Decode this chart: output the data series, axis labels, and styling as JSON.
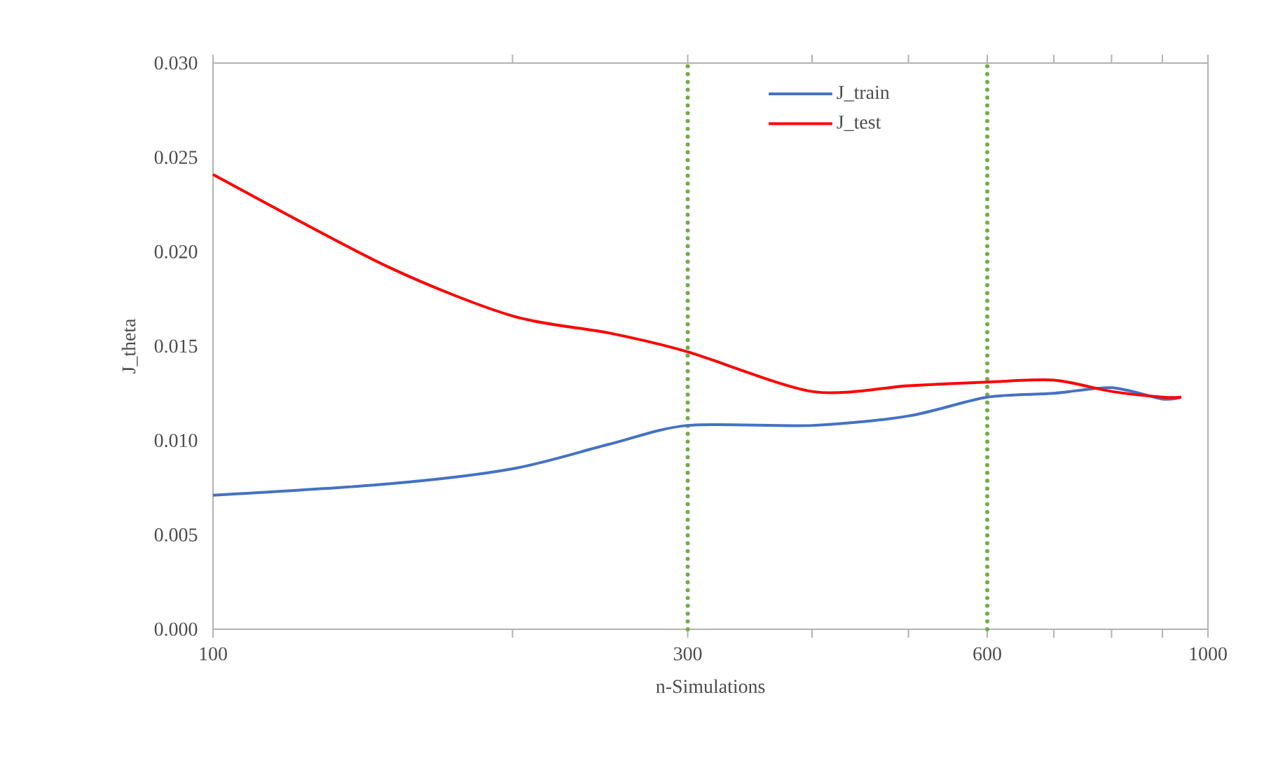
{
  "chart_data": {
    "type": "line",
    "xlabel": "n-Simulations",
    "ylabel": "J_theta",
    "log": "x",
    "xlim": [
      100,
      1000
    ],
    "xticks": [
      100,
      {
        "value": 200,
        "label": null
      },
      300,
      {
        "value": 400,
        "label": null
      },
      {
        "value": 500,
        "label": null
      },
      600,
      {
        "value": 700,
        "label": null
      },
      {
        "value": 800,
        "label": null
      },
      {
        "value": 900,
        "label": null
      },
      1000
    ],
    "ylim": [
      0,
      0.03
    ],
    "yticks": [
      {
        "value": 0,
        "label": "0.000"
      },
      {
        "value": 0.005,
        "label": "0.005"
      },
      {
        "value": 0.01,
        "label": "0.010"
      },
      {
        "value": 0.015,
        "label": "0.015"
      },
      {
        "value": 0.02,
        "label": "0.020"
      },
      {
        "value": 0.025,
        "label": "0.025"
      },
      {
        "value": 0.03,
        "label": "0.030"
      }
    ],
    "x": [
      100,
      150,
      200,
      250,
      300,
      400,
      500,
      600,
      700,
      800,
      900,
      940
    ],
    "series": [
      {
        "name": "J_train",
        "color": "#4472c4",
        "values": [
          0.0071,
          0.0077,
          0.0085,
          0.0098,
          0.0108,
          0.0108,
          0.0113,
          0.0123,
          0.0125,
          0.0128,
          0.0122,
          0.0123
        ]
      },
      {
        "name": "J_test",
        "color": "#ff0000",
        "values": [
          0.0241,
          0.0192,
          0.0166,
          0.0157,
          0.0147,
          0.0126,
          0.0129,
          0.0131,
          0.0132,
          0.0126,
          0.0123,
          0.0123
        ]
      }
    ],
    "ref_lines": [
      {
        "axis": "x",
        "value": 300,
        "color": "#70ad47",
        "line_style": "dotted"
      },
      {
        "axis": "x",
        "value": 600,
        "color": "#70ad47",
        "line_style": "dotted"
      }
    ],
    "grid": false,
    "legend": "top"
  }
}
